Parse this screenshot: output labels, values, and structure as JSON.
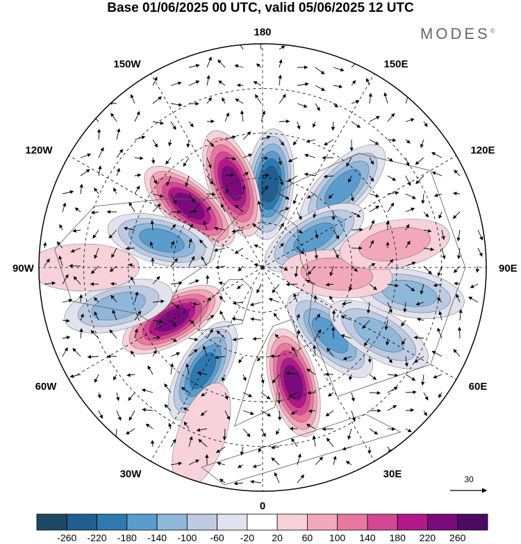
{
  "title": "Base 01/06/2025 00 UTC, valid 05/06/2025 12 UTC",
  "brand": "MODES",
  "brand_mark": "©",
  "longitude_labels": {
    "top": "180",
    "bottom": "0",
    "left": "90W",
    "right": "90E",
    "upper_left_1": "150W",
    "upper_left_2": "120W",
    "upper_right_1": "150E",
    "upper_right_2": "120E",
    "lower_left_1": "60W",
    "lower_left_2": "30W",
    "lower_right_1": "60E",
    "lower_right_2": "30E"
  },
  "reference_vector": {
    "label": "30"
  },
  "colorbar": {
    "labels": [
      "-260",
      "-220",
      "-180",
      "-140",
      "-100",
      "-60",
      "-20",
      "20",
      "60",
      "100",
      "140",
      "180",
      "220",
      "260"
    ],
    "colors": [
      "#1e4866",
      "#205f8f",
      "#2e7ab0",
      "#5a9ccc",
      "#8fb7d9",
      "#bccbe2",
      "#e2e2ee",
      "#ffffff",
      "#f7d2da",
      "#f2a8bb",
      "#e878a0",
      "#d44893",
      "#b2188a",
      "#7b0b7c",
      "#4d0a62"
    ]
  },
  "anomaly_centers": [
    {
      "lon": 175,
      "lat": 62,
      "value": -240
    },
    {
      "lon": -160,
      "lat": 60,
      "value": 240
    },
    {
      "lon": -130,
      "lat": 58,
      "value": 230
    },
    {
      "lon": 135,
      "lat": 52,
      "value": -150
    },
    {
      "lon": 120,
      "lat": 70,
      "value": -160
    },
    {
      "lon": -105,
      "lat": 55,
      "value": -170
    },
    {
      "lon": -60,
      "lat": 55,
      "value": 250
    },
    {
      "lon": -30,
      "lat": 50,
      "value": -210
    },
    {
      "lon": -75,
      "lat": 40,
      "value": -140
    },
    {
      "lon": 15,
      "lat": 50,
      "value": 230
    },
    {
      "lon": 45,
      "lat": 58,
      "value": -160
    },
    {
      "lon": 60,
      "lat": 45,
      "value": -120
    },
    {
      "lon": 80,
      "lat": 40,
      "value": -120
    },
    {
      "lon": 85,
      "lat": 65,
      "value": 100
    },
    {
      "lon": 100,
      "lat": 45,
      "value": 90
    },
    {
      "lon": -90,
      "lat": 30,
      "value": 60
    },
    {
      "lon": -20,
      "lat": 30,
      "value": 60
    }
  ]
}
